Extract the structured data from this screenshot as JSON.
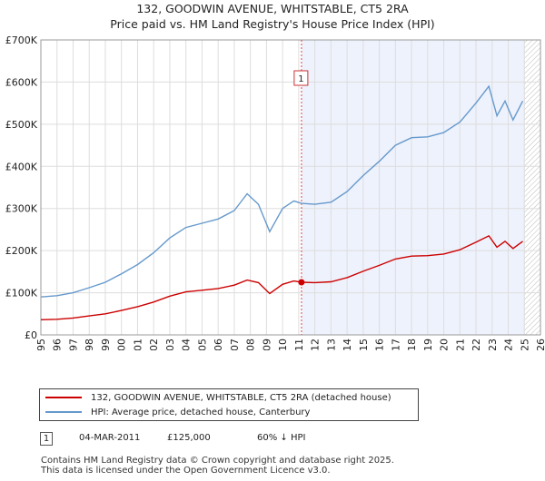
{
  "title_line1": "132, GOODWIN AVENUE, WHITSTABLE, CT5 2RA",
  "title_line2": "Price paid vs. HM Land Registry's House Price Index (HPI)",
  "colors": {
    "property": "#cc0000",
    "hpi": "#6699cc",
    "shade": "#eef2fc",
    "grid": "#dddddd",
    "vline": "#dd4444"
  },
  "chart_data": {
    "type": "line",
    "title": "Price paid vs. HM Land Registry's House Price Index (HPI)",
    "xlim": [
      1995,
      2026
    ],
    "ylim": [
      0,
      700000
    ],
    "yticks": [
      0,
      100000,
      200000,
      300000,
      400000,
      500000,
      600000,
      700000
    ],
    "ytick_labels": [
      "£0",
      "£100K",
      "£200K",
      "£300K",
      "£400K",
      "£500K",
      "£600K",
      "£700K"
    ],
    "xticks": [
      "1995",
      "1996",
      "1997",
      "1998",
      "1999",
      "2000",
      "2001",
      "2002",
      "2003",
      "2004",
      "2005",
      "2006",
      "2007",
      "2008",
      "2009",
      "2010",
      "2011",
      "2012",
      "2013",
      "2014",
      "2015",
      "2016",
      "2017",
      "2018",
      "2019",
      "2020",
      "2021",
      "2022",
      "2023",
      "2024",
      "2025",
      "2026"
    ],
    "shaded_from": 2011.17,
    "future_from": 2025.0,
    "series": [
      {
        "name": "132, GOODWIN AVENUE, WHITSTABLE, CT5 2RA (detached house)",
        "x": [
          1995,
          1996,
          1997,
          1998,
          1999,
          2000,
          2001,
          2002,
          2003,
          2004,
          2005,
          2006,
          2007,
          2007.8,
          2008.5,
          2009.2,
          2010,
          2010.7,
          2011.17,
          2012,
          2013,
          2014,
          2015,
          2016,
          2017,
          2018,
          2019,
          2020,
          2021,
          2022,
          2022.8,
          2023.3,
          2023.8,
          2024.3,
          2024.9
        ],
        "y": [
          36000,
          37000,
          40000,
          45000,
          50000,
          58000,
          67000,
          78000,
          92000,
          102000,
          106000,
          110000,
          118000,
          130000,
          124000,
          98000,
          120000,
          128000,
          125000,
          124000,
          126000,
          136000,
          151000,
          165000,
          180000,
          187000,
          188000,
          192000,
          202000,
          220000,
          235000,
          208000,
          222000,
          205000,
          222000
        ]
      },
      {
        "name": "HPI: Average price, detached house, Canterbury",
        "x": [
          1995,
          1996,
          1997,
          1998,
          1999,
          2000,
          2001,
          2002,
          2003,
          2004,
          2005,
          2006,
          2007,
          2007.8,
          2008.5,
          2009.2,
          2010,
          2010.7,
          2011.17,
          2012,
          2013,
          2014,
          2015,
          2016,
          2017,
          2018,
          2019,
          2020,
          2021,
          2022,
          2022.8,
          2023.3,
          2023.8,
          2024.3,
          2024.9
        ],
        "y": [
          90000,
          93000,
          100000,
          112000,
          125000,
          145000,
          167000,
          195000,
          230000,
          255000,
          265000,
          275000,
          295000,
          335000,
          310000,
          245000,
          300000,
          318000,
          312000,
          310000,
          315000,
          340000,
          378000,
          412000,
          450000,
          468000,
          470000,
          480000,
          505000,
          550000,
          590000,
          520000,
          555000,
          510000,
          555000
        ]
      }
    ],
    "annotations": [
      {
        "label": "1",
        "x": 2011.17,
        "y": 125000
      }
    ]
  },
  "legend": {
    "items": [
      "132, GOODWIN AVENUE, WHITSTABLE, CT5 2RA (detached house)",
      "HPI: Average price, detached house, Canterbury"
    ]
  },
  "sale": {
    "num": "1",
    "date": "04-MAR-2011",
    "price": "£125,000",
    "hpi": "60% ↓ HPI"
  },
  "footer": {
    "line1": "Contains HM Land Registry data © Crown copyright and database right 2025.",
    "line2": "This data is licensed under the Open Government Licence v3.0."
  }
}
